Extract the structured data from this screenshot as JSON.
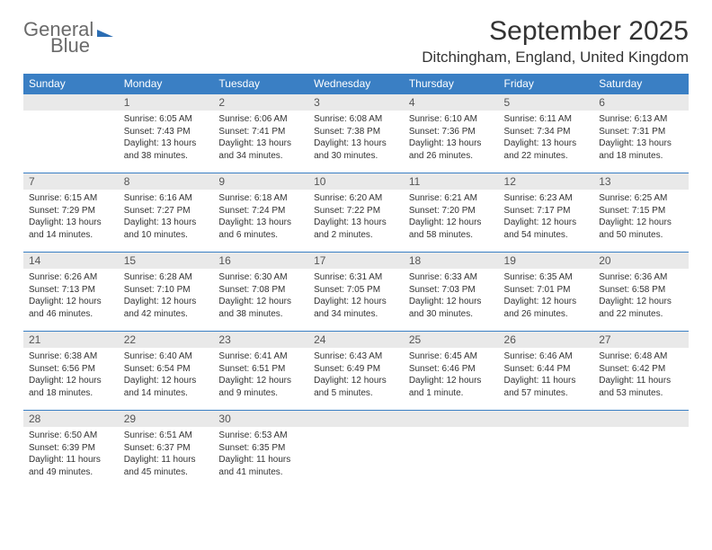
{
  "brand": {
    "word1": "General",
    "word2": "Blue"
  },
  "header": {
    "title": "September 2025",
    "location": "Ditchingham, England, United Kingdom"
  },
  "colors": {
    "header_bg": "#3a7fc4",
    "header_text": "#ffffff",
    "dayhead_bg": "#e9e9e9",
    "dayhead_border": "#3a7fc4",
    "body_text": "#333333",
    "logo_gray": "#6a6a6a",
    "logo_blue": "#3a7fc4"
  },
  "weekdays": [
    "Sunday",
    "Monday",
    "Tuesday",
    "Wednesday",
    "Thursday",
    "Friday",
    "Saturday"
  ],
  "weeks": [
    [
      {
        "n": "",
        "sunrise": "",
        "sunset": "",
        "daylight": ""
      },
      {
        "n": "1",
        "sunrise": "Sunrise: 6:05 AM",
        "sunset": "Sunset: 7:43 PM",
        "daylight": "Daylight: 13 hours and 38 minutes."
      },
      {
        "n": "2",
        "sunrise": "Sunrise: 6:06 AM",
        "sunset": "Sunset: 7:41 PM",
        "daylight": "Daylight: 13 hours and 34 minutes."
      },
      {
        "n": "3",
        "sunrise": "Sunrise: 6:08 AM",
        "sunset": "Sunset: 7:38 PM",
        "daylight": "Daylight: 13 hours and 30 minutes."
      },
      {
        "n": "4",
        "sunrise": "Sunrise: 6:10 AM",
        "sunset": "Sunset: 7:36 PM",
        "daylight": "Daylight: 13 hours and 26 minutes."
      },
      {
        "n": "5",
        "sunrise": "Sunrise: 6:11 AM",
        "sunset": "Sunset: 7:34 PM",
        "daylight": "Daylight: 13 hours and 22 minutes."
      },
      {
        "n": "6",
        "sunrise": "Sunrise: 6:13 AM",
        "sunset": "Sunset: 7:31 PM",
        "daylight": "Daylight: 13 hours and 18 minutes."
      }
    ],
    [
      {
        "n": "7",
        "sunrise": "Sunrise: 6:15 AM",
        "sunset": "Sunset: 7:29 PM",
        "daylight": "Daylight: 13 hours and 14 minutes."
      },
      {
        "n": "8",
        "sunrise": "Sunrise: 6:16 AM",
        "sunset": "Sunset: 7:27 PM",
        "daylight": "Daylight: 13 hours and 10 minutes."
      },
      {
        "n": "9",
        "sunrise": "Sunrise: 6:18 AM",
        "sunset": "Sunset: 7:24 PM",
        "daylight": "Daylight: 13 hours and 6 minutes."
      },
      {
        "n": "10",
        "sunrise": "Sunrise: 6:20 AM",
        "sunset": "Sunset: 7:22 PM",
        "daylight": "Daylight: 13 hours and 2 minutes."
      },
      {
        "n": "11",
        "sunrise": "Sunrise: 6:21 AM",
        "sunset": "Sunset: 7:20 PM",
        "daylight": "Daylight: 12 hours and 58 minutes."
      },
      {
        "n": "12",
        "sunrise": "Sunrise: 6:23 AM",
        "sunset": "Sunset: 7:17 PM",
        "daylight": "Daylight: 12 hours and 54 minutes."
      },
      {
        "n": "13",
        "sunrise": "Sunrise: 6:25 AM",
        "sunset": "Sunset: 7:15 PM",
        "daylight": "Daylight: 12 hours and 50 minutes."
      }
    ],
    [
      {
        "n": "14",
        "sunrise": "Sunrise: 6:26 AM",
        "sunset": "Sunset: 7:13 PM",
        "daylight": "Daylight: 12 hours and 46 minutes."
      },
      {
        "n": "15",
        "sunrise": "Sunrise: 6:28 AM",
        "sunset": "Sunset: 7:10 PM",
        "daylight": "Daylight: 12 hours and 42 minutes."
      },
      {
        "n": "16",
        "sunrise": "Sunrise: 6:30 AM",
        "sunset": "Sunset: 7:08 PM",
        "daylight": "Daylight: 12 hours and 38 minutes."
      },
      {
        "n": "17",
        "sunrise": "Sunrise: 6:31 AM",
        "sunset": "Sunset: 7:05 PM",
        "daylight": "Daylight: 12 hours and 34 minutes."
      },
      {
        "n": "18",
        "sunrise": "Sunrise: 6:33 AM",
        "sunset": "Sunset: 7:03 PM",
        "daylight": "Daylight: 12 hours and 30 minutes."
      },
      {
        "n": "19",
        "sunrise": "Sunrise: 6:35 AM",
        "sunset": "Sunset: 7:01 PM",
        "daylight": "Daylight: 12 hours and 26 minutes."
      },
      {
        "n": "20",
        "sunrise": "Sunrise: 6:36 AM",
        "sunset": "Sunset: 6:58 PM",
        "daylight": "Daylight: 12 hours and 22 minutes."
      }
    ],
    [
      {
        "n": "21",
        "sunrise": "Sunrise: 6:38 AM",
        "sunset": "Sunset: 6:56 PM",
        "daylight": "Daylight: 12 hours and 18 minutes."
      },
      {
        "n": "22",
        "sunrise": "Sunrise: 6:40 AM",
        "sunset": "Sunset: 6:54 PM",
        "daylight": "Daylight: 12 hours and 14 minutes."
      },
      {
        "n": "23",
        "sunrise": "Sunrise: 6:41 AM",
        "sunset": "Sunset: 6:51 PM",
        "daylight": "Daylight: 12 hours and 9 minutes."
      },
      {
        "n": "24",
        "sunrise": "Sunrise: 6:43 AM",
        "sunset": "Sunset: 6:49 PM",
        "daylight": "Daylight: 12 hours and 5 minutes."
      },
      {
        "n": "25",
        "sunrise": "Sunrise: 6:45 AM",
        "sunset": "Sunset: 6:46 PM",
        "daylight": "Daylight: 12 hours and 1 minute."
      },
      {
        "n": "26",
        "sunrise": "Sunrise: 6:46 AM",
        "sunset": "Sunset: 6:44 PM",
        "daylight": "Daylight: 11 hours and 57 minutes."
      },
      {
        "n": "27",
        "sunrise": "Sunrise: 6:48 AM",
        "sunset": "Sunset: 6:42 PM",
        "daylight": "Daylight: 11 hours and 53 minutes."
      }
    ],
    [
      {
        "n": "28",
        "sunrise": "Sunrise: 6:50 AM",
        "sunset": "Sunset: 6:39 PM",
        "daylight": "Daylight: 11 hours and 49 minutes."
      },
      {
        "n": "29",
        "sunrise": "Sunrise: 6:51 AM",
        "sunset": "Sunset: 6:37 PM",
        "daylight": "Daylight: 11 hours and 45 minutes."
      },
      {
        "n": "30",
        "sunrise": "Sunrise: 6:53 AM",
        "sunset": "Sunset: 6:35 PM",
        "daylight": "Daylight: 11 hours and 41 minutes."
      },
      {
        "n": "",
        "sunrise": "",
        "sunset": "",
        "daylight": ""
      },
      {
        "n": "",
        "sunrise": "",
        "sunset": "",
        "daylight": ""
      },
      {
        "n": "",
        "sunrise": "",
        "sunset": "",
        "daylight": ""
      },
      {
        "n": "",
        "sunrise": "",
        "sunset": "",
        "daylight": ""
      }
    ]
  ]
}
